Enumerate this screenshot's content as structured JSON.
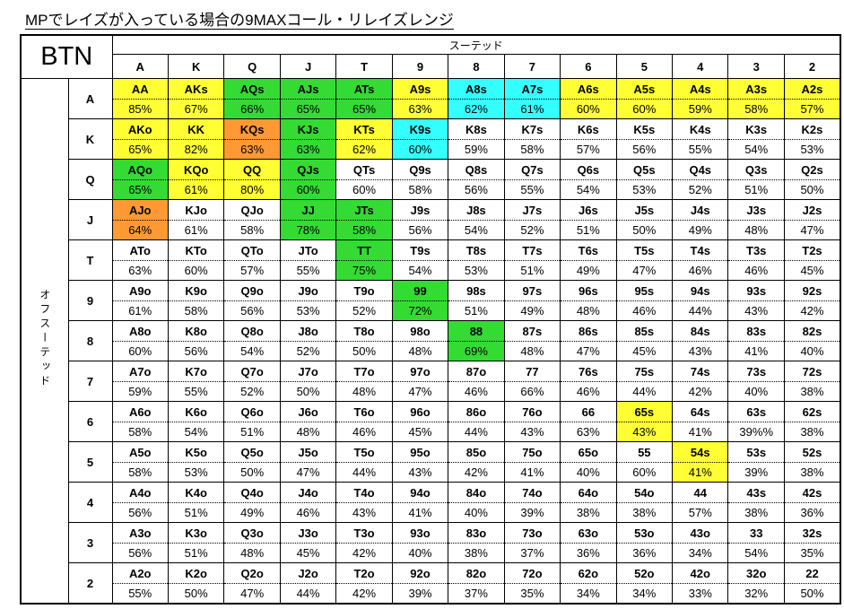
{
  "title": "MPでレイズが入っている場合の9MAXコール・リレイズレンジ",
  "corner_label": "BTN",
  "suited_label": "スーテッド",
  "offsuit_label": "オフスーテッド",
  "colors": {
    "yellow": "#FFFF33",
    "green": "#33DB33",
    "cyan": "#33FFFF",
    "orange": "#FF9933",
    "white": "#FFFFFF"
  },
  "default_fill": "#FFFFFF",
  "chart_data": {
    "type": "table",
    "title": "MPでレイズが入っている場合の9MAXコール・リレイズレンジ",
    "column_headers": [
      "A",
      "K",
      "Q",
      "J",
      "T",
      "9",
      "8",
      "7",
      "6",
      "5",
      "4",
      "3",
      "2"
    ],
    "row_headers": [
      "A",
      "K",
      "Q",
      "J",
      "T",
      "9",
      "8",
      "7",
      "6",
      "5",
      "4",
      "3",
      "2"
    ],
    "legend_note_top_axis": "スーテッド",
    "legend_note_left_axis": "オフスーテッド",
    "rows": [
      [
        {
          "hand": "AA",
          "pct": "85%",
          "color": "yellow"
        },
        {
          "hand": "AKs",
          "pct": "67%",
          "color": "yellow"
        },
        {
          "hand": "AQs",
          "pct": "66%",
          "color": "green"
        },
        {
          "hand": "AJs",
          "pct": "65%",
          "color": "green"
        },
        {
          "hand": "ATs",
          "pct": "65%",
          "color": "green"
        },
        {
          "hand": "A9s",
          "pct": "63%",
          "color": "yellow"
        },
        {
          "hand": "A8s",
          "pct": "62%",
          "color": "cyan"
        },
        {
          "hand": "A7s",
          "pct": "61%",
          "color": "cyan"
        },
        {
          "hand": "A6s",
          "pct": "60%",
          "color": "yellow"
        },
        {
          "hand": "A5s",
          "pct": "60%",
          "color": "yellow"
        },
        {
          "hand": "A4s",
          "pct": "59%",
          "color": "yellow"
        },
        {
          "hand": "A3s",
          "pct": "58%",
          "color": "yellow"
        },
        {
          "hand": "A2s",
          "pct": "57%",
          "color": "yellow"
        }
      ],
      [
        {
          "hand": "AKo",
          "pct": "65%",
          "color": "yellow"
        },
        {
          "hand": "KK",
          "pct": "82%",
          "color": "yellow"
        },
        {
          "hand": "KQs",
          "pct": "63%",
          "color": "orange"
        },
        {
          "hand": "KJs",
          "pct": "63%",
          "color": "green"
        },
        {
          "hand": "KTs",
          "pct": "62%",
          "color": "yellow"
        },
        {
          "hand": "K9s",
          "pct": "60%",
          "color": "cyan"
        },
        {
          "hand": "K8s",
          "pct": "59%"
        },
        {
          "hand": "K7s",
          "pct": "58%"
        },
        {
          "hand": "K6s",
          "pct": "57%"
        },
        {
          "hand": "K5s",
          "pct": "56%"
        },
        {
          "hand": "K4s",
          "pct": "55%"
        },
        {
          "hand": "K3s",
          "pct": "54%"
        },
        {
          "hand": "K2s",
          "pct": "53%"
        }
      ],
      [
        {
          "hand": "AQo",
          "pct": "65%",
          "color": "green"
        },
        {
          "hand": "KQo",
          "pct": "61%",
          "color": "yellow"
        },
        {
          "hand": "QQ",
          "pct": "80%",
          "color": "yellow"
        },
        {
          "hand": "QJs",
          "pct": "60%",
          "color": "green"
        },
        {
          "hand": "QTs",
          "pct": "60%"
        },
        {
          "hand": "Q9s",
          "pct": "58%"
        },
        {
          "hand": "Q8s",
          "pct": "56%"
        },
        {
          "hand": "Q7s",
          "pct": "55%"
        },
        {
          "hand": "Q6s",
          "pct": "54%"
        },
        {
          "hand": "Q5s",
          "pct": "53%"
        },
        {
          "hand": "Q4s",
          "pct": "52%"
        },
        {
          "hand": "Q3s",
          "pct": "51%"
        },
        {
          "hand": "Q2s",
          "pct": "50%"
        }
      ],
      [
        {
          "hand": "AJo",
          "pct": "64%",
          "color": "orange"
        },
        {
          "hand": "KJo",
          "pct": "61%"
        },
        {
          "hand": "QJo",
          "pct": "58%"
        },
        {
          "hand": "JJ",
          "pct": "78%",
          "color": "green"
        },
        {
          "hand": "JTs",
          "pct": "58%",
          "color": "green"
        },
        {
          "hand": "J9s",
          "pct": "56%"
        },
        {
          "hand": "J8s",
          "pct": "54%"
        },
        {
          "hand": "J7s",
          "pct": "52%"
        },
        {
          "hand": "J6s",
          "pct": "51%"
        },
        {
          "hand": "J5s",
          "pct": "50%"
        },
        {
          "hand": "J4s",
          "pct": "49%"
        },
        {
          "hand": "J3s",
          "pct": "48%"
        },
        {
          "hand": "J2s",
          "pct": "47%"
        }
      ],
      [
        {
          "hand": "ATo",
          "pct": "63%"
        },
        {
          "hand": "KTo",
          "pct": "60%"
        },
        {
          "hand": "QTo",
          "pct": "57%"
        },
        {
          "hand": "JTo",
          "pct": "55%"
        },
        {
          "hand": "TT",
          "pct": "75%",
          "color": "green"
        },
        {
          "hand": "T9s",
          "pct": "54%"
        },
        {
          "hand": "T8s",
          "pct": "53%"
        },
        {
          "hand": "T7s",
          "pct": "51%"
        },
        {
          "hand": "T6s",
          "pct": "49%"
        },
        {
          "hand": "T5s",
          "pct": "47%"
        },
        {
          "hand": "T4s",
          "pct": "46%"
        },
        {
          "hand": "T3s",
          "pct": "46%"
        },
        {
          "hand": "T2s",
          "pct": "45%"
        }
      ],
      [
        {
          "hand": "A9o",
          "pct": "61%"
        },
        {
          "hand": "K9o",
          "pct": "58%"
        },
        {
          "hand": "Q9o",
          "pct": "56%"
        },
        {
          "hand": "J9o",
          "pct": "53%"
        },
        {
          "hand": "T9o",
          "pct": "52%"
        },
        {
          "hand": "99",
          "pct": "72%",
          "color": "green"
        },
        {
          "hand": "98s",
          "pct": "51%"
        },
        {
          "hand": "97s",
          "pct": "49%"
        },
        {
          "hand": "96s",
          "pct": "48%"
        },
        {
          "hand": "95s",
          "pct": "46%"
        },
        {
          "hand": "94s",
          "pct": "44%"
        },
        {
          "hand": "93s",
          "pct": "43%"
        },
        {
          "hand": "92s",
          "pct": "42%"
        }
      ],
      [
        {
          "hand": "A8o",
          "pct": "60%"
        },
        {
          "hand": "K8o",
          "pct": "56%"
        },
        {
          "hand": "Q8o",
          "pct": "54%"
        },
        {
          "hand": "J8o",
          "pct": "52%"
        },
        {
          "hand": "T8o",
          "pct": "50%"
        },
        {
          "hand": "98o",
          "pct": "48%"
        },
        {
          "hand": "88",
          "pct": "69%",
          "color": "green"
        },
        {
          "hand": "87s",
          "pct": "48%"
        },
        {
          "hand": "86s",
          "pct": "47%"
        },
        {
          "hand": "85s",
          "pct": "45%"
        },
        {
          "hand": "84s",
          "pct": "43%"
        },
        {
          "hand": "83s",
          "pct": "41%"
        },
        {
          "hand": "82s",
          "pct": "40%"
        }
      ],
      [
        {
          "hand": "A7o",
          "pct": "59%"
        },
        {
          "hand": "K7o",
          "pct": "55%"
        },
        {
          "hand": "Q7o",
          "pct": "52%"
        },
        {
          "hand": "J7o",
          "pct": "50%"
        },
        {
          "hand": "T7o",
          "pct": "48%"
        },
        {
          "hand": "97o",
          "pct": "47%"
        },
        {
          "hand": "87o",
          "pct": "46%"
        },
        {
          "hand": "77",
          "pct": "66%"
        },
        {
          "hand": "76s",
          "pct": "46%"
        },
        {
          "hand": "75s",
          "pct": "44%"
        },
        {
          "hand": "74s",
          "pct": "42%"
        },
        {
          "hand": "73s",
          "pct": "40%"
        },
        {
          "hand": "72s",
          "pct": "38%"
        }
      ],
      [
        {
          "hand": "A6o",
          "pct": "58%"
        },
        {
          "hand": "K6o",
          "pct": "54%"
        },
        {
          "hand": "Q6o",
          "pct": "51%"
        },
        {
          "hand": "J6o",
          "pct": "48%"
        },
        {
          "hand": "T6o",
          "pct": "46%"
        },
        {
          "hand": "96o",
          "pct": "45%"
        },
        {
          "hand": "86o",
          "pct": "44%"
        },
        {
          "hand": "76o",
          "pct": "43%"
        },
        {
          "hand": "66",
          "pct": "63%"
        },
        {
          "hand": "65s",
          "pct": "43%",
          "color": "yellow"
        },
        {
          "hand": "64s",
          "pct": "41%"
        },
        {
          "hand": "63s",
          "pct": "39%%"
        },
        {
          "hand": "62s",
          "pct": "38%"
        }
      ],
      [
        {
          "hand": "A5o",
          "pct": "58%"
        },
        {
          "hand": "K5o",
          "pct": "53%"
        },
        {
          "hand": "Q5o",
          "pct": "50%"
        },
        {
          "hand": "J5o",
          "pct": "47%"
        },
        {
          "hand": "T5o",
          "pct": "44%"
        },
        {
          "hand": "95o",
          "pct": "43%"
        },
        {
          "hand": "85o",
          "pct": "42%"
        },
        {
          "hand": "75o",
          "pct": "41%"
        },
        {
          "hand": "65o",
          "pct": "40%"
        },
        {
          "hand": "55",
          "pct": "60%"
        },
        {
          "hand": "54s",
          "pct": "41%",
          "color": "yellow"
        },
        {
          "hand": "53s",
          "pct": "39%"
        },
        {
          "hand": "52s",
          "pct": "38%"
        }
      ],
      [
        {
          "hand": "A4o",
          "pct": "56%"
        },
        {
          "hand": "K4o",
          "pct": "51%"
        },
        {
          "hand": "Q4o",
          "pct": "49%"
        },
        {
          "hand": "J4o",
          "pct": "46%"
        },
        {
          "hand": "T4o",
          "pct": "43%"
        },
        {
          "hand": "94o",
          "pct": "41%"
        },
        {
          "hand": "84o",
          "pct": "40%"
        },
        {
          "hand": "74o",
          "pct": "39%"
        },
        {
          "hand": "64o",
          "pct": "38%"
        },
        {
          "hand": "54o",
          "pct": "38%"
        },
        {
          "hand": "44",
          "pct": "57%"
        },
        {
          "hand": "43s",
          "pct": "38%"
        },
        {
          "hand": "42s",
          "pct": "36%"
        }
      ],
      [
        {
          "hand": "A3o",
          "pct": "56%"
        },
        {
          "hand": "K3o",
          "pct": "51%"
        },
        {
          "hand": "Q3o",
          "pct": "48%"
        },
        {
          "hand": "J3o",
          "pct": "45%"
        },
        {
          "hand": "T3o",
          "pct": "42%"
        },
        {
          "hand": "93o",
          "pct": "40%"
        },
        {
          "hand": "83o",
          "pct": "38%"
        },
        {
          "hand": "73o",
          "pct": "37%"
        },
        {
          "hand": "63o",
          "pct": "36%"
        },
        {
          "hand": "53o",
          "pct": "36%"
        },
        {
          "hand": "43o",
          "pct": "34%"
        },
        {
          "hand": "33",
          "pct": "54%"
        },
        {
          "hand": "32s",
          "pct": "35%"
        }
      ],
      [
        {
          "hand": "A2o",
          "pct": "55%"
        },
        {
          "hand": "K2o",
          "pct": "50%"
        },
        {
          "hand": "Q2o",
          "pct": "47%"
        },
        {
          "hand": "J2o",
          "pct": "44%"
        },
        {
          "hand": "T2o",
          "pct": "42%"
        },
        {
          "hand": "92o",
          "pct": "39%"
        },
        {
          "hand": "82o",
          "pct": "37%"
        },
        {
          "hand": "72o",
          "pct": "35%"
        },
        {
          "hand": "62o",
          "pct": "34%"
        },
        {
          "hand": "52o",
          "pct": "34%"
        },
        {
          "hand": "42o",
          "pct": "33%"
        },
        {
          "hand": "32o",
          "pct": "32%"
        },
        {
          "hand": "22",
          "pct": "50%"
        }
      ]
    ]
  }
}
